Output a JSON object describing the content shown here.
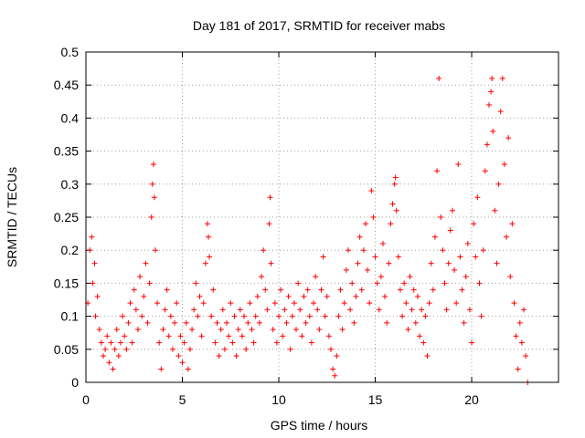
{
  "chart_data": {
    "type": "scatter",
    "title": "Day 181 of 2017, SRMTID for receiver mabs",
    "xlabel": "GPS time / hours",
    "ylabel": "SRMTID / TECUs",
    "xlim": [
      0,
      24.5
    ],
    "ylim": [
      0,
      0.5
    ],
    "xticks": [
      0,
      5,
      10,
      15,
      20
    ],
    "xtick_labels": [
      "0",
      "5",
      "10",
      "15",
      "20"
    ],
    "yticks": [
      0,
      0.05,
      0.1,
      0.15,
      0.2,
      0.25,
      0.3,
      0.35,
      0.4,
      0.45,
      0.5
    ],
    "ytick_labels": [
      "0",
      "0.05",
      "0.1",
      "0.15",
      "0.2",
      "0.25",
      "0.3",
      "0.35",
      "0.4",
      "0.45",
      "0.5"
    ],
    "grid": true,
    "marker": "plus",
    "color": "#ff0000",
    "series": [
      {
        "name": "SRMTID",
        "points": [
          [
            0.1,
            0.12
          ],
          [
            0.2,
            0.2
          ],
          [
            0.3,
            0.22
          ],
          [
            0.35,
            0.15
          ],
          [
            0.45,
            0.18
          ],
          [
            0.5,
            0.1
          ],
          [
            0.6,
            0.13
          ],
          [
            0.7,
            0.08
          ],
          [
            0.8,
            0.06
          ],
          [
            0.9,
            0.04
          ],
          [
            1.0,
            0.05
          ],
          [
            1.1,
            0.07
          ],
          [
            1.2,
            0.03
          ],
          [
            1.3,
            0.06
          ],
          [
            1.4,
            0.02
          ],
          [
            1.5,
            0.05
          ],
          [
            1.6,
            0.08
          ],
          [
            1.7,
            0.04
          ],
          [
            1.8,
            0.06
          ],
          [
            1.9,
            0.1
          ],
          [
            2.0,
            0.07
          ],
          [
            2.1,
            0.05
          ],
          [
            2.2,
            0.09
          ],
          [
            2.3,
            0.12
          ],
          [
            2.4,
            0.06
          ],
          [
            2.5,
            0.14
          ],
          [
            2.6,
            0.11
          ],
          [
            2.7,
            0.08
          ],
          [
            2.8,
            0.16
          ],
          [
            2.9,
            0.1
          ],
          [
            3.0,
            0.13
          ],
          [
            3.1,
            0.18
          ],
          [
            3.2,
            0.09
          ],
          [
            3.3,
            0.15
          ],
          [
            3.4,
            0.25
          ],
          [
            3.45,
            0.3
          ],
          [
            3.5,
            0.33
          ],
          [
            3.55,
            0.28
          ],
          [
            3.6,
            0.2
          ],
          [
            3.7,
            0.12
          ],
          [
            3.8,
            0.06
          ],
          [
            3.9,
            0.02
          ],
          [
            4.0,
            0.08
          ],
          [
            4.1,
            0.11
          ],
          [
            4.2,
            0.14
          ],
          [
            4.3,
            0.07
          ],
          [
            4.4,
            0.1
          ],
          [
            4.5,
            0.05
          ],
          [
            4.6,
            0.09
          ],
          [
            4.7,
            0.12
          ],
          [
            4.8,
            0.04
          ],
          [
            4.9,
            0.07
          ],
          [
            5.0,
            0.03
          ],
          [
            5.1,
            0.06
          ],
          [
            5.2,
            0.09
          ],
          [
            5.3,
            0.02
          ],
          [
            5.4,
            0.05
          ],
          [
            5.5,
            0.08
          ],
          [
            5.6,
            0.11
          ],
          [
            5.7,
            0.15
          ],
          [
            5.8,
            0.1
          ],
          [
            5.9,
            0.13
          ],
          [
            6.0,
            0.07
          ],
          [
            6.1,
            0.12
          ],
          [
            6.2,
            0.18
          ],
          [
            6.3,
            0.24
          ],
          [
            6.35,
            0.22
          ],
          [
            6.4,
            0.19
          ],
          [
            6.5,
            0.1
          ],
          [
            6.6,
            0.14
          ],
          [
            6.7,
            0.06
          ],
          [
            6.8,
            0.09
          ],
          [
            6.9,
            0.04
          ],
          [
            7.0,
            0.08
          ],
          [
            7.1,
            0.11
          ],
          [
            7.2,
            0.05
          ],
          [
            7.3,
            0.09
          ],
          [
            7.4,
            0.07
          ],
          [
            7.5,
            0.12
          ],
          [
            7.6,
            0.06
          ],
          [
            7.7,
            0.1
          ],
          [
            7.8,
            0.04
          ],
          [
            7.9,
            0.08
          ],
          [
            8.0,
            0.11
          ],
          [
            8.1,
            0.07
          ],
          [
            8.2,
            0.1
          ],
          [
            8.3,
            0.05
          ],
          [
            8.4,
            0.09
          ],
          [
            8.5,
            0.12
          ],
          [
            8.6,
            0.08
          ],
          [
            8.7,
            0.06
          ],
          [
            8.8,
            0.1
          ],
          [
            8.9,
            0.13
          ],
          [
            9.0,
            0.09
          ],
          [
            9.1,
            0.16
          ],
          [
            9.2,
            0.2
          ],
          [
            9.3,
            0.14
          ],
          [
            9.4,
            0.11
          ],
          [
            9.5,
            0.24
          ],
          [
            9.55,
            0.28
          ],
          [
            9.6,
            0.18
          ],
          [
            9.7,
            0.08
          ],
          [
            9.8,
            0.12
          ],
          [
            9.9,
            0.06
          ],
          [
            10.0,
            0.1
          ],
          [
            10.1,
            0.14
          ],
          [
            10.2,
            0.07
          ],
          [
            10.3,
            0.11
          ],
          [
            10.4,
            0.09
          ],
          [
            10.5,
            0.13
          ],
          [
            10.6,
            0.05
          ],
          [
            10.7,
            0.1
          ],
          [
            10.8,
            0.12
          ],
          [
            10.9,
            0.08
          ],
          [
            11.0,
            0.15
          ],
          [
            11.1,
            0.11
          ],
          [
            11.2,
            0.07
          ],
          [
            11.3,
            0.13
          ],
          [
            11.4,
            0.09
          ],
          [
            11.5,
            0.14
          ],
          [
            11.6,
            0.1
          ],
          [
            11.7,
            0.06
          ],
          [
            11.8,
            0.12
          ],
          [
            11.9,
            0.16
          ],
          [
            12.0,
            0.11
          ],
          [
            12.1,
            0.08
          ],
          [
            12.2,
            0.14
          ],
          [
            12.3,
            0.19
          ],
          [
            12.4,
            0.1
          ],
          [
            12.5,
            0.13
          ],
          [
            12.6,
            0.07
          ],
          [
            12.7,
            0.05
          ],
          [
            12.8,
            0.02
          ],
          [
            12.9,
            0.01
          ],
          [
            13.0,
            0.04
          ],
          [
            13.1,
            0.1
          ],
          [
            13.2,
            0.14
          ],
          [
            13.3,
            0.08
          ],
          [
            13.4,
            0.12
          ],
          [
            13.5,
            0.17
          ],
          [
            13.6,
            0.2
          ],
          [
            13.7,
            0.11
          ],
          [
            13.8,
            0.15
          ],
          [
            13.9,
            0.09
          ],
          [
            14.0,
            0.13
          ],
          [
            14.1,
            0.18
          ],
          [
            14.2,
            0.22
          ],
          [
            14.3,
            0.14
          ],
          [
            14.4,
            0.2
          ],
          [
            14.5,
            0.24
          ],
          [
            14.6,
            0.17
          ],
          [
            14.7,
            0.12
          ],
          [
            14.8,
            0.29
          ],
          [
            14.9,
            0.25
          ],
          [
            15.0,
            0.19
          ],
          [
            15.1,
            0.15
          ],
          [
            15.2,
            0.11
          ],
          [
            15.3,
            0.16
          ],
          [
            15.4,
            0.21
          ],
          [
            15.5,
            0.13
          ],
          [
            15.6,
            0.09
          ],
          [
            15.7,
            0.18
          ],
          [
            15.8,
            0.24
          ],
          [
            15.9,
            0.27
          ],
          [
            16.0,
            0.3
          ],
          [
            16.05,
            0.31
          ],
          [
            16.1,
            0.26
          ],
          [
            16.2,
            0.19
          ],
          [
            16.3,
            0.14
          ],
          [
            16.4,
            0.1
          ],
          [
            16.5,
            0.15
          ],
          [
            16.6,
            0.12
          ],
          [
            16.7,
            0.08
          ],
          [
            16.8,
            0.16
          ],
          [
            16.9,
            0.11
          ],
          [
            17.0,
            0.14
          ],
          [
            17.1,
            0.09
          ],
          [
            17.2,
            0.13
          ],
          [
            17.3,
            0.07
          ],
          [
            17.4,
            0.11
          ],
          [
            17.5,
            0.06
          ],
          [
            17.6,
            0.1
          ],
          [
            17.7,
            0.04
          ],
          [
            17.8,
            0.12
          ],
          [
            17.9,
            0.18
          ],
          [
            18.0,
            0.14
          ],
          [
            18.1,
            0.22
          ],
          [
            18.2,
            0.32
          ],
          [
            18.3,
            0.46
          ],
          [
            18.4,
            0.25
          ],
          [
            18.5,
            0.2
          ],
          [
            18.6,
            0.15
          ],
          [
            18.7,
            0.11
          ],
          [
            18.8,
            0.18
          ],
          [
            18.9,
            0.23
          ],
          [
            19.0,
            0.26
          ],
          [
            19.1,
            0.17
          ],
          [
            19.2,
            0.12
          ],
          [
            19.3,
            0.33
          ],
          [
            19.4,
            0.19
          ],
          [
            19.5,
            0.14
          ],
          [
            19.6,
            0.09
          ],
          [
            19.7,
            0.16
          ],
          [
            19.8,
            0.21
          ],
          [
            19.9,
            0.11
          ],
          [
            20.0,
            0.06
          ],
          [
            20.1,
            0.24
          ],
          [
            20.2,
            0.19
          ],
          [
            20.3,
            0.28
          ],
          [
            20.4,
            0.15
          ],
          [
            20.5,
            0.1
          ],
          [
            20.6,
            0.2
          ],
          [
            20.7,
            0.32
          ],
          [
            20.8,
            0.36
          ],
          [
            20.9,
            0.42
          ],
          [
            21.0,
            0.44
          ],
          [
            21.05,
            0.46
          ],
          [
            21.1,
            0.38
          ],
          [
            21.2,
            0.26
          ],
          [
            21.3,
            0.18
          ],
          [
            21.4,
            0.3
          ],
          [
            21.5,
            0.41
          ],
          [
            21.6,
            0.46
          ],
          [
            21.7,
            0.33
          ],
          [
            21.8,
            0.22
          ],
          [
            21.9,
            0.37
          ],
          [
            22.0,
            0.16
          ],
          [
            22.1,
            0.24
          ],
          [
            22.2,
            0.12
          ],
          [
            22.3,
            0.07
          ],
          [
            22.4,
            0.02
          ],
          [
            22.5,
            0.09
          ],
          [
            22.6,
            0.06
          ],
          [
            22.7,
            0.11
          ],
          [
            22.8,
            0.04
          ],
          [
            22.9,
            0.0
          ]
        ]
      }
    ]
  }
}
